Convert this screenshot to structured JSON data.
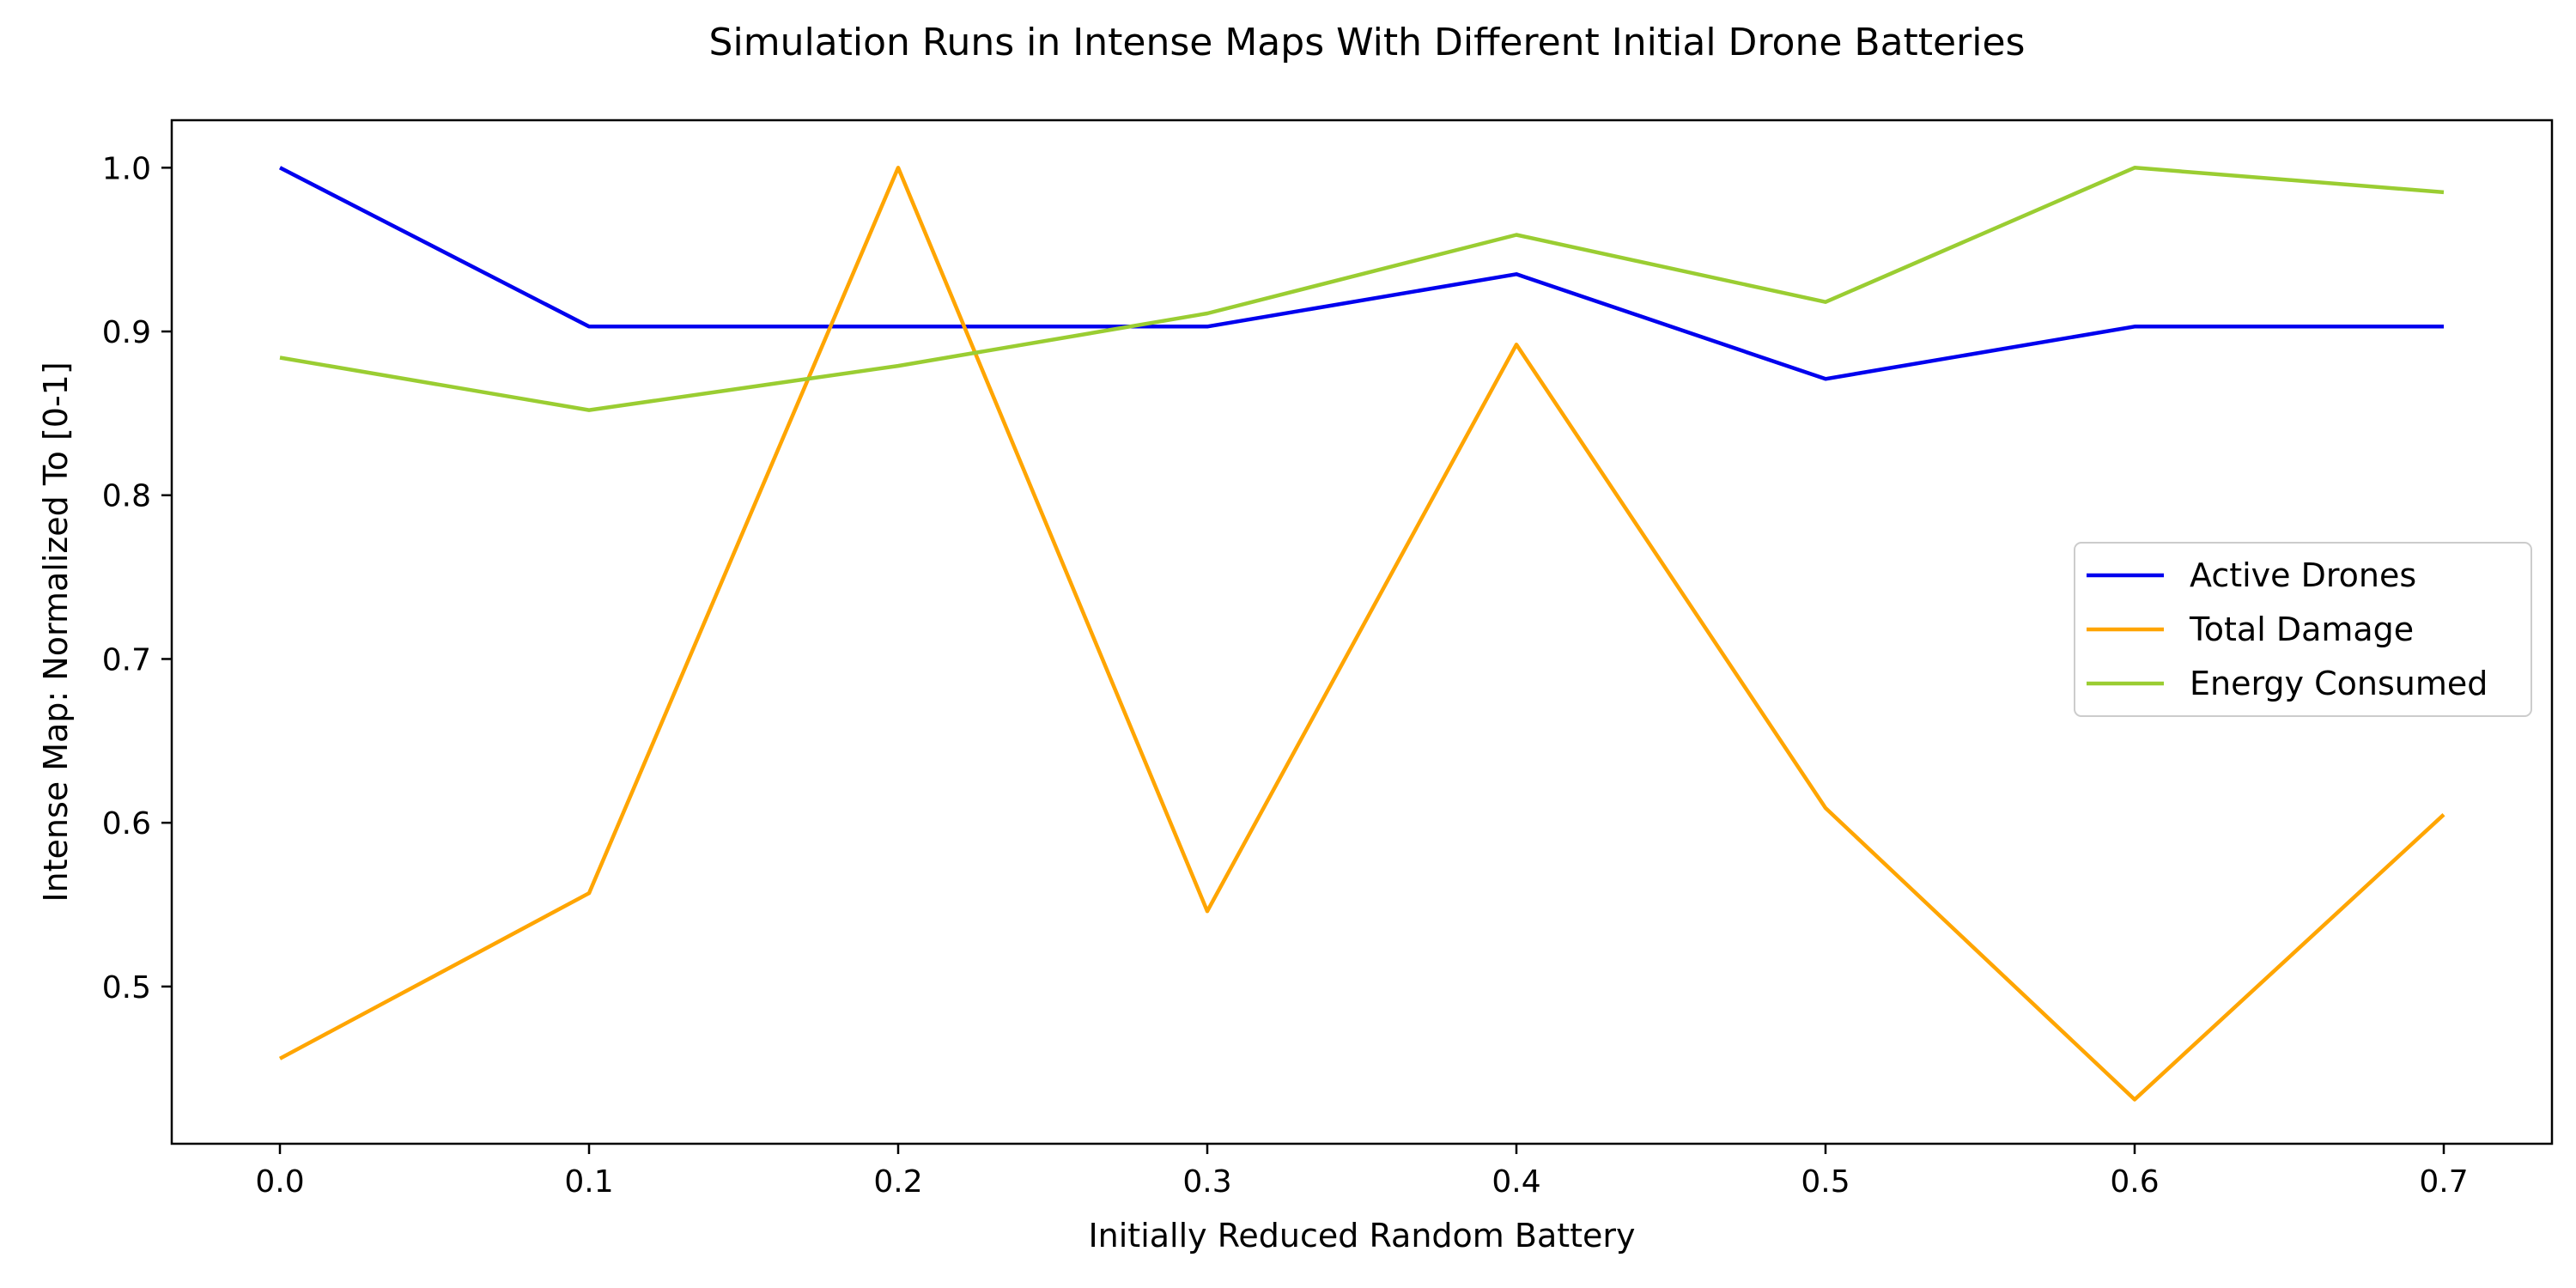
{
  "chart_data": {
    "type": "line",
    "title": "Simulation Runs in Intense Maps With Different Initial Drone Batteries",
    "xlabel": "Initially Reduced Random Battery",
    "ylabel": "Intense Map: Normalized To [0-1]",
    "x": [
      0.0,
      0.1,
      0.2,
      0.3,
      0.4,
      0.5,
      0.6,
      0.7
    ],
    "xticks": [
      "0.0",
      "0.1",
      "0.2",
      "0.3",
      "0.4",
      "0.5",
      "0.6",
      "0.7"
    ],
    "yticks": [
      "0.5",
      "0.6",
      "0.7",
      "0.8",
      "0.9",
      "1.0"
    ],
    "xlim": [
      -0.035,
      0.735
    ],
    "ylim": [
      0.404,
      1.029
    ],
    "grid": false,
    "legend_position": "center-right",
    "series": [
      {
        "name": "Active Drones",
        "color": "#0000ee",
        "values": [
          1.0,
          0.903,
          0.903,
          0.903,
          0.935,
          0.871,
          0.903,
          0.903
        ]
      },
      {
        "name": "Total Damage",
        "color": "#ffa500",
        "values": [
          0.456,
          0.557,
          1.0,
          0.546,
          0.892,
          0.609,
          0.431,
          0.605
        ]
      },
      {
        "name": "Energy Consumed",
        "color": "#9acd32",
        "values": [
          0.884,
          0.852,
          0.879,
          0.911,
          0.959,
          0.918,
          1.0,
          0.985
        ]
      }
    ]
  }
}
